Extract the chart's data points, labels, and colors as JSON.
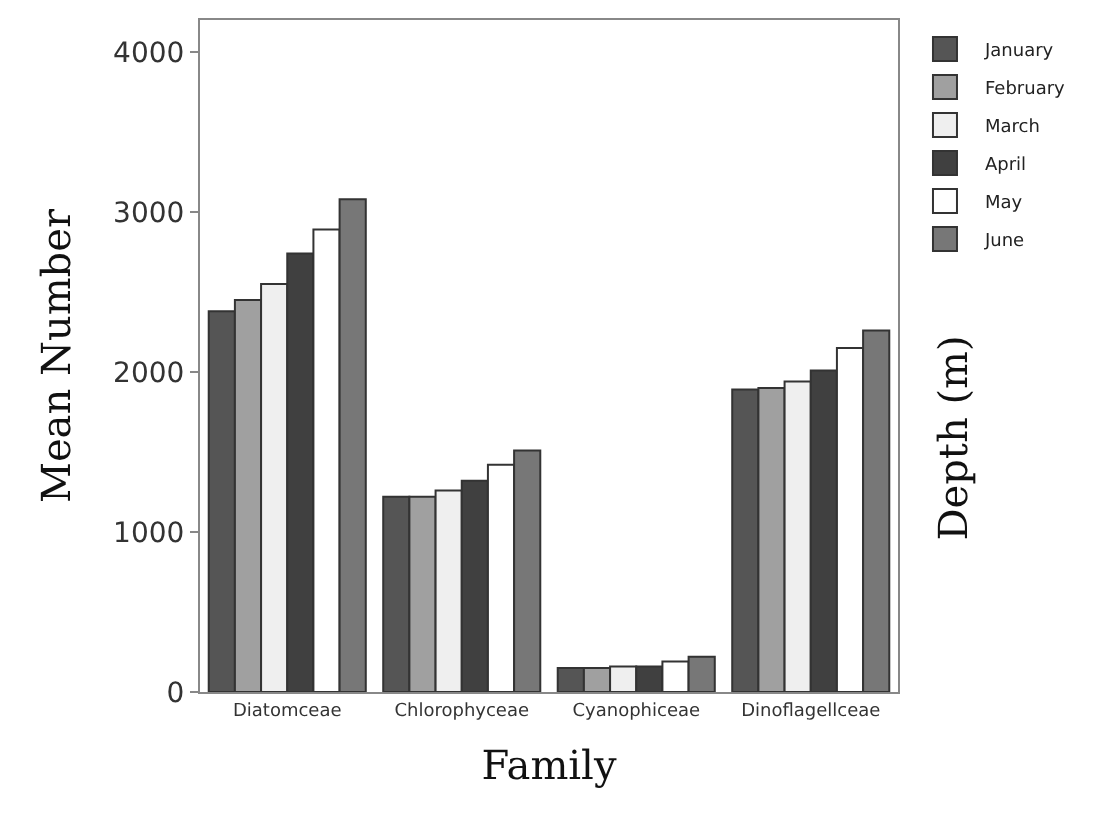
{
  "chart_data": {
    "type": "bar",
    "xlabel": "Family",
    "ylabel": "Mean Number",
    "y2label": "Depth (m)",
    "categories": [
      "Diatomceae",
      "Chlorophyceae",
      "Cyanophiceae",
      "Dinoflagellceae"
    ],
    "series": [
      {
        "name": "January",
        "color": "#555555",
        "values": [
          2380,
          1220,
          150,
          1890
        ]
      },
      {
        "name": "February",
        "color": "#a0a0a0",
        "values": [
          2450,
          1220,
          150,
          1900
        ]
      },
      {
        "name": "March",
        "color": "#efefef",
        "values": [
          2550,
          1260,
          160,
          1940
        ]
      },
      {
        "name": "April",
        "color": "#404040",
        "values": [
          2740,
          1320,
          160,
          2010
        ]
      },
      {
        "name": "May",
        "color": "#ffffff",
        "values": [
          2890,
          1420,
          190,
          2150
        ]
      },
      {
        "name": "June",
        "color": "#777777",
        "values": [
          3080,
          1510,
          220,
          2260
        ]
      }
    ],
    "ylim": [
      0,
      4200
    ],
    "yticks": [
      0,
      1000,
      2000,
      3000,
      4000
    ],
    "legend": "top right"
  }
}
